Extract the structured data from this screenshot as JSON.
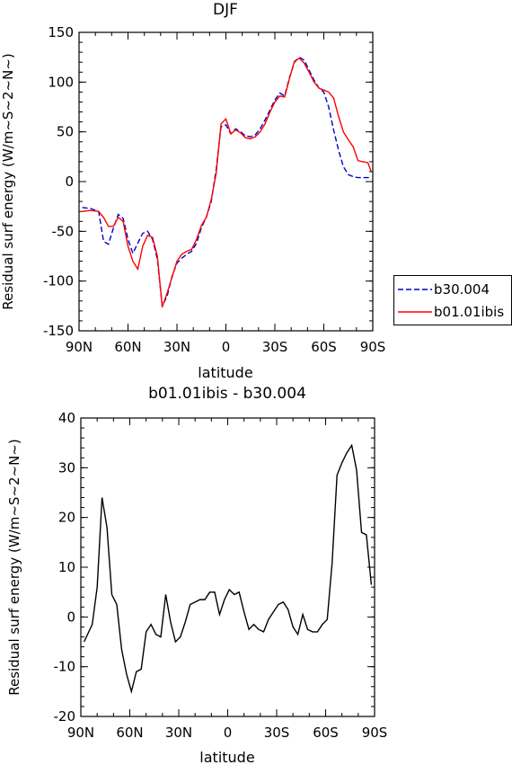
{
  "chart_data": [
    {
      "type": "line",
      "title": "DJF",
      "xlabel": "latitude",
      "ylabel": "Residual surf energy (W/m~S~2~N~)",
      "xlim": [
        -90,
        90
      ],
      "ylim": [
        -150,
        150
      ],
      "xticks": [
        -90,
        -60,
        -30,
        0,
        30,
        60,
        90
      ],
      "xtick_labels": [
        "90N",
        "60N",
        "30N",
        "0",
        "30S",
        "60S",
        "90S"
      ],
      "yticks": [
        -150,
        -100,
        -50,
        0,
        50,
        100,
        150
      ],
      "ytick_labels": [
        "-150",
        "-100",
        "-50",
        "0",
        "50",
        "100",
        "150"
      ],
      "legend_position": "right",
      "series": [
        {
          "name": "b30.004",
          "color": "#0000cc",
          "dash": "dashed",
          "x": [
            -88,
            -83,
            -78,
            -75,
            -72,
            -69,
            -66,
            -63,
            -60,
            -57,
            -54,
            -51,
            -48,
            -45,
            -42,
            -39,
            -36,
            -33,
            -30,
            -27,
            -24,
            -21,
            -18,
            -15,
            -12,
            -9,
            -6,
            -3,
            0,
            3,
            6,
            9,
            12,
            15,
            18,
            21,
            24,
            27,
            30,
            33,
            36,
            39,
            42,
            45,
            48,
            51,
            54,
            57,
            60,
            63,
            66,
            69,
            72,
            75,
            78,
            81,
            84,
            87,
            89
          ],
          "y": [
            -26,
            -27,
            -30,
            -60,
            -63,
            -47,
            -33,
            -37,
            -58,
            -72,
            -62,
            -52,
            -50,
            -58,
            -78,
            -125,
            -115,
            -95,
            -82,
            -77,
            -73,
            -70,
            -62,
            -46,
            -36,
            -20,
            12,
            55,
            57,
            48,
            53,
            50,
            46,
            45,
            47,
            53,
            62,
            72,
            82,
            89,
            86,
            105,
            120,
            125,
            122,
            112,
            102,
            94,
            90,
            75,
            52,
            32,
            15,
            7,
            5,
            4,
            4,
            4,
            4
          ]
        },
        {
          "name": "b01.01ibis",
          "color": "#ff0000",
          "dash": "solid",
          "x": [
            -88,
            -83,
            -78,
            -75,
            -72,
            -69,
            -66,
            -63,
            -60,
            -57,
            -54,
            -51,
            -48,
            -45,
            -42,
            -39,
            -36,
            -33,
            -30,
            -27,
            -24,
            -21,
            -18,
            -15,
            -12,
            -9,
            -6,
            -3,
            0,
            3,
            6,
            9,
            12,
            15,
            18,
            21,
            24,
            27,
            30,
            33,
            36,
            39,
            42,
            45,
            48,
            51,
            54,
            57,
            60,
            63,
            66,
            69,
            72,
            75,
            78,
            81,
            84,
            87,
            89
          ],
          "y": [
            -30,
            -29,
            -30,
            -36,
            -45,
            -45,
            -36,
            -40,
            -65,
            -80,
            -88,
            -65,
            -54,
            -56,
            -75,
            -126,
            -112,
            -96,
            -80,
            -73,
            -70,
            -68,
            -58,
            -44,
            -36,
            -18,
            8,
            58,
            63,
            48,
            52,
            49,
            44,
            43,
            45,
            50,
            58,
            70,
            80,
            86,
            85,
            104,
            121,
            124,
            119,
            110,
            100,
            94,
            92,
            90,
            84,
            66,
            50,
            42,
            35,
            21,
            20,
            19,
            10
          ]
        }
      ]
    },
    {
      "type": "line",
      "title": "b01.01ibis - b30.004",
      "xlabel": "latitude",
      "ylabel": "Residual surf energy (W/m~S~2~N~)",
      "xlim": [
        -90,
        90
      ],
      "ylim": [
        -20,
        40
      ],
      "xticks": [
        -90,
        -60,
        -30,
        0,
        30,
        60,
        90
      ],
      "xtick_labels": [
        "90N",
        "60N",
        "30N",
        "0",
        "30S",
        "60S",
        "90S"
      ],
      "yticks": [
        -20,
        -10,
        0,
        10,
        20,
        30,
        40
      ],
      "ytick_labels": [
        "-20",
        "-10",
        "0",
        "10",
        "20",
        "30",
        "40"
      ],
      "series": [
        {
          "color": "#000000",
          "dash": "solid",
          "x": [
            -88,
            -83,
            -80,
            -77,
            -74,
            -71,
            -68,
            -65,
            -62,
            -59,
            -56,
            -53,
            -50,
            -47,
            -44,
            -41,
            -38,
            -35,
            -32,
            -29,
            -26,
            -23,
            -20,
            -17,
            -14,
            -11,
            -8,
            -5,
            -2,
            1,
            4,
            7,
            10,
            13,
            16,
            19,
            22,
            25,
            28,
            31,
            34,
            37,
            40,
            43,
            46,
            49,
            52,
            55,
            58,
            61,
            64,
            67,
            70,
            73,
            76,
            79,
            82,
            85,
            88
          ],
          "y": [
            -5,
            -1.5,
            6,
            24,
            18,
            4.5,
            2.5,
            -6.5,
            -11.5,
            -15,
            -11,
            -10.5,
            -3,
            -1.5,
            -3.5,
            -4,
            4.5,
            -1,
            -5,
            -4,
            -1,
            2.5,
            3,
            3.5,
            3.5,
            5,
            5,
            0.5,
            3.5,
            5.5,
            4.5,
            5,
            1,
            -2.5,
            -1.5,
            -2.5,
            -3,
            -0.5,
            1,
            2.5,
            3,
            1.5,
            -2,
            -3.5,
            0.5,
            -2.5,
            -3,
            -3,
            -1.5,
            -0.5,
            11,
            28.5,
            31,
            33,
            34.5,
            29.5,
            17,
            16.5,
            6.5
          ]
        }
      ]
    }
  ]
}
